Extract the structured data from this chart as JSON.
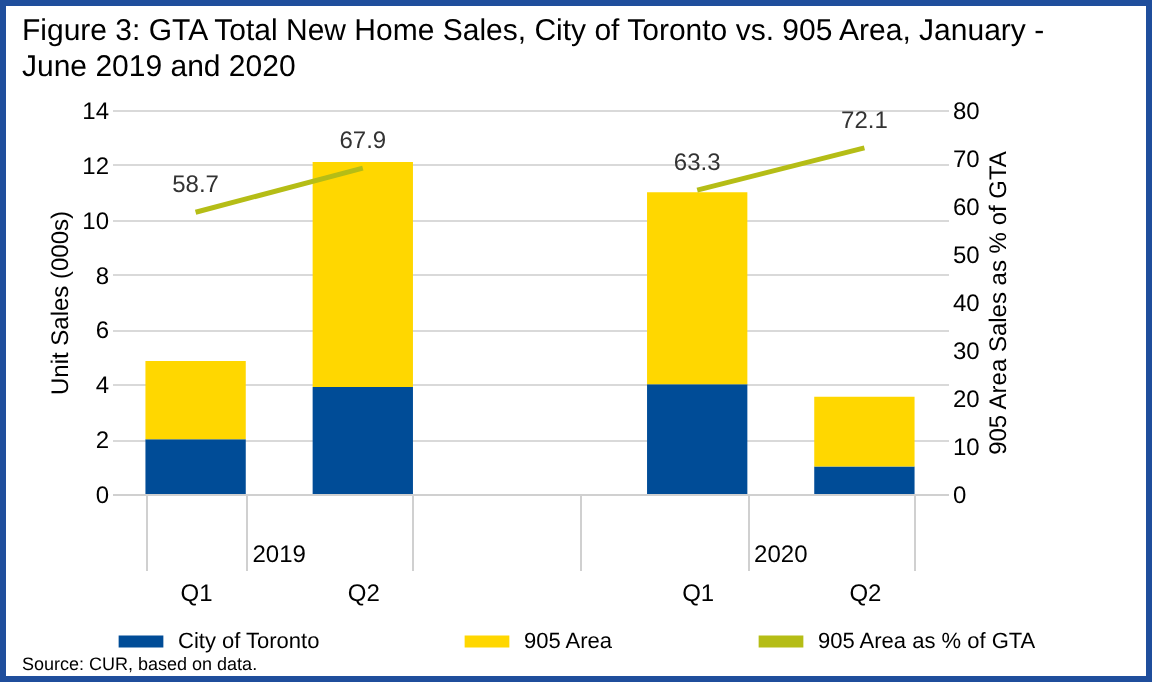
{
  "chart_data": {
    "type": "bar",
    "title": "Figure 3: GTA Total New Home Sales, City of Toronto vs. 905 Area, January - June 2019 and 2020",
    "ylabel": "Unit Sales (000s)",
    "y2label": "905 Area Sales as % of GTA",
    "categories": [
      "Q1",
      "Q2",
      null,
      "Q1",
      "Q2"
    ],
    "stacked": true,
    "series": [
      {
        "name": "City of Toronto",
        "color": "#004c97",
        "values": [
          2.0,
          3.9,
          null,
          4.0,
          1.0
        ]
      },
      {
        "name": "905 Area",
        "color": "#ffd700",
        "values": [
          2.85,
          8.2,
          null,
          7.0,
          2.55
        ]
      },
      {
        "name": "905 Area as % of GTA",
        "type": "line",
        "axis": "y2",
        "color": "#b5bd16",
        "values": [
          58.7,
          67.9,
          null,
          63.3,
          72.1
        ],
        "value_labels": [
          "58.7",
          "67.9",
          null,
          "63.3",
          "72.1"
        ]
      }
    ],
    "ylim": [
      0,
      14
    ],
    "yticks": [
      0,
      2,
      4,
      6,
      8,
      10,
      12,
      14
    ],
    "y2lim": [
      0,
      80
    ],
    "y2ticks": [
      0,
      10,
      20,
      30,
      40,
      50,
      60,
      70,
      80
    ],
    "grid": "y",
    "legend": "bottom",
    "annotations": [
      "2019",
      "2020",
      "Source: CUR, based on data."
    ]
  }
}
